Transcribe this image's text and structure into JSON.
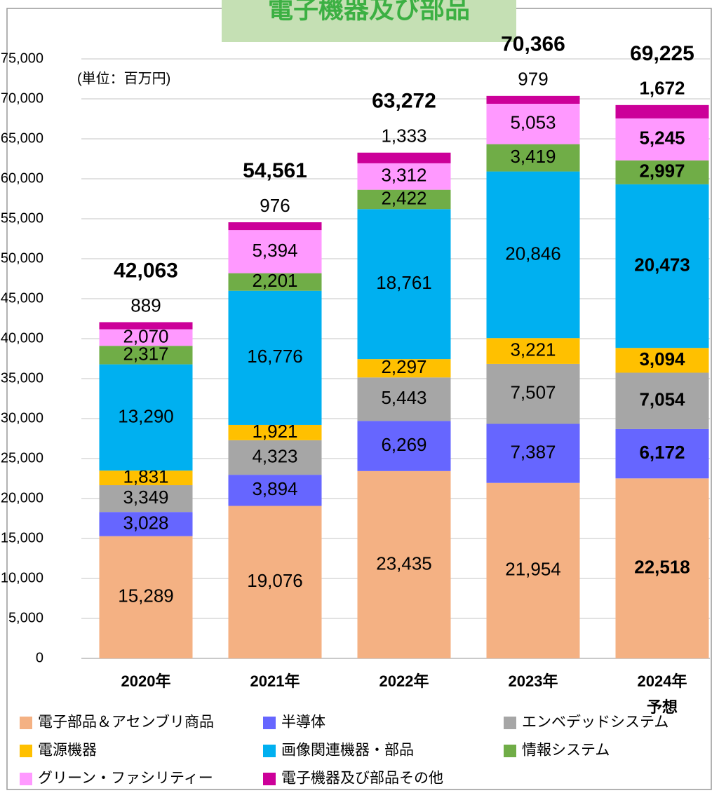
{
  "chart_data": {
    "type": "stacked_bar",
    "title": "電子機器及び部品",
    "unit_note": "(単位：百万円)",
    "categories": [
      "2020年",
      "2021年",
      "2022年",
      "2023年",
      "2024年\n予想"
    ],
    "bold_last": true,
    "series": [
      {
        "name": "電子部品＆アセンブリ商品",
        "color": "#f4b183",
        "values": [
          15289,
          19076,
          23435,
          21954,
          22518
        ],
        "value_labels": [
          "15,289",
          "19,076",
          "23,435",
          "21,954",
          "22,518"
        ]
      },
      {
        "name": "半導体",
        "color": "#6666ff",
        "values": [
          3028,
          3894,
          6269,
          7387,
          6172
        ],
        "value_labels": [
          "3,028",
          "3,894",
          "6,269",
          "7,387",
          "6,172"
        ]
      },
      {
        "name": "エンベデッドシステム",
        "color": "#a6a6a6",
        "values": [
          3349,
          4323,
          5443,
          7507,
          7054
        ],
        "value_labels": [
          "3,349",
          "4,323",
          "5,443",
          "7,507",
          "7,054"
        ]
      },
      {
        "name": "電源機器",
        "color": "#ffc000",
        "values": [
          1831,
          1921,
          2297,
          3221,
          3094
        ],
        "value_labels": [
          "1,831",
          "1,921",
          "2,297",
          "3,221",
          "3,094"
        ]
      },
      {
        "name": "画像関連機器・部品",
        "color": "#00b0f0",
        "values": [
          13290,
          16776,
          18761,
          20846,
          20473
        ],
        "value_labels": [
          "13,290",
          "16,776",
          "18,761",
          "20,846",
          "20,473"
        ]
      },
      {
        "name": "情報システム",
        "color": "#70ad47",
        "values": [
          2317,
          2201,
          2422,
          3419,
          2997
        ],
        "value_labels": [
          "2,317",
          "2,201",
          "2,422",
          "3,419",
          "2,997"
        ]
      },
      {
        "name": "グリーン・ファシリティー",
        "color": "#ff99ff",
        "values": [
          2070,
          5394,
          3312,
          5053,
          5245
        ],
        "value_labels": [
          "2,070",
          "5,394",
          "3,312",
          "5,053",
          "5,245"
        ]
      },
      {
        "name": "電子機器及び部品その他",
        "color": "#cc0099",
        "values": [
          889,
          976,
          1333,
          979,
          1672
        ],
        "value_labels": [
          "889",
          "976",
          "1,333",
          "979",
          "1,672"
        ]
      }
    ],
    "totals": [
      42063,
      54561,
      63272,
      70366,
      69225
    ],
    "total_labels": [
      "42,063",
      "54,561",
      "63,272",
      "70,366",
      "69,225"
    ],
    "ylim": [
      0,
      75000
    ],
    "yticks": [
      0,
      {
        "value": 5000,
        "label": "5,000"
      },
      {
        "value": 10000,
        "label": "10,000"
      },
      {
        "value": 15000,
        "label": "15,000"
      },
      {
        "value": 20000,
        "label": "20,000"
      },
      {
        "value": 25000,
        "label": "25,000"
      },
      {
        "value": 30000,
        "label": "30,000"
      },
      {
        "value": 35000,
        "label": "35,000"
      },
      {
        "value": 40000,
        "label": "40,000"
      },
      {
        "value": 45000,
        "label": "45,000"
      },
      {
        "value": 50000,
        "label": "50,000"
      },
      {
        "value": 55000,
        "label": "55,000"
      },
      {
        "value": 60000,
        "label": "60,000"
      },
      {
        "value": 65000,
        "label": "65,000"
      },
      {
        "value": 70000,
        "label": "70,000"
      },
      {
        "value": {
          "value": 75000,
          "label": "75,000"
        },
        "label": null
      }
    ],
    "grid": true,
    "legend": "bottom"
  }
}
